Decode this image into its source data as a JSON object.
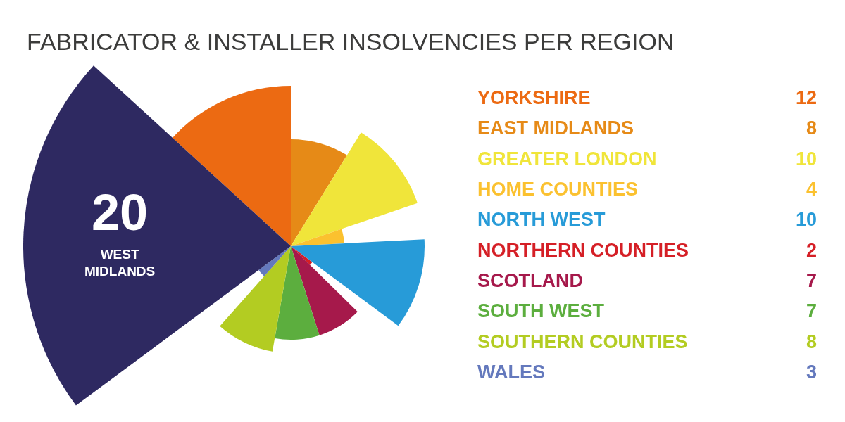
{
  "chart_data": {
    "type": "other",
    "title": "FABRICATOR & INSTALLER INSOLVENCIES PER REGION",
    "categories": [
      "YORKSHIRE",
      "EAST MIDLANDS",
      "GREATER LONDON",
      "HOME COUNTIES",
      "NORTH WEST",
      "NORTHERN COUNTIES",
      "SCOTLAND",
      "SOUTH WEST",
      "SOUTHERN COUNTIES",
      "WALES",
      "WEST MIDLANDS"
    ],
    "values": [
      12,
      8,
      10,
      4,
      10,
      2,
      7,
      7,
      8,
      3,
      20
    ],
    "colors": [
      "#ec6a12",
      "#e68a17",
      "#f0e53a",
      "#fbc12f",
      "#279bd8",
      "#d51f26",
      "#a6194b",
      "#5cae3e",
      "#b3cc22",
      "#6479bd",
      "#2e2961"
    ],
    "data_labels": true
  }
}
